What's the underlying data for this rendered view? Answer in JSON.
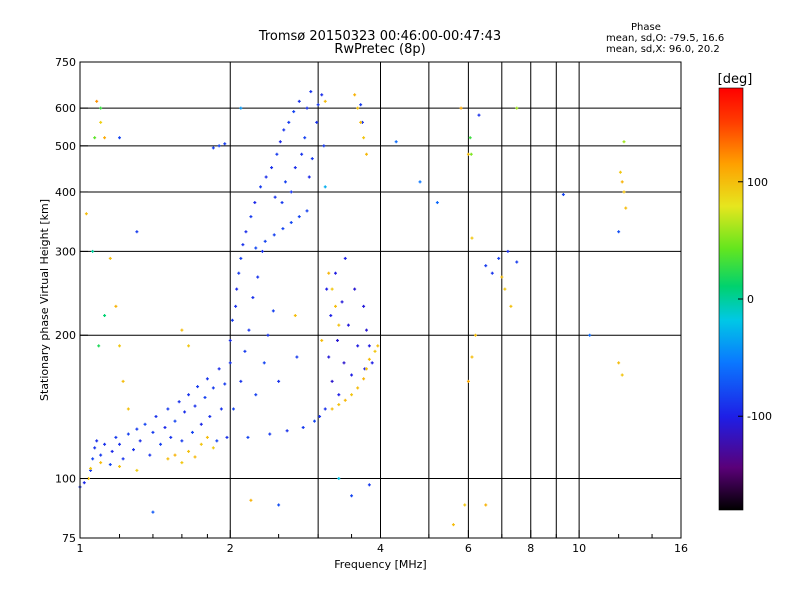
{
  "header": {
    "title_line1": "Tromsø 20150323 00:46:00-00:47:43",
    "title_line2": "RwPretec (8p)"
  },
  "phase_box": {
    "label": "Phase",
    "line_o": "mean, sd,O: -79.5, 16.6",
    "line_x": "mean, sd,X:  96.0, 20.2"
  },
  "colorbar": {
    "unit_label": "[deg]",
    "range": [
      -180,
      180
    ],
    "ticks": [
      {
        "value": 100,
        "label": "100"
      },
      {
        "value": 0,
        "label": "0"
      },
      {
        "value": -100,
        "label": "-100"
      }
    ]
  },
  "chart_data": {
    "type": "scatter",
    "title": "Tromsø 20150323 00:46:00-00:47:43",
    "subtitle": "RwPretec (8p)",
    "xlabel": "Frequency [MHz]",
    "ylabel": "Stationary phase Virtual Height [km]",
    "x_scale": "log",
    "y_scale": "log",
    "xlim": [
      1,
      16
    ],
    "ylim": [
      75,
      750
    ],
    "x_ticks": [
      {
        "value": 1,
        "label": "1"
      },
      {
        "value": 2,
        "label": "2"
      },
      {
        "value": 4,
        "label": "4"
      },
      {
        "value": 6,
        "label": "6"
      },
      {
        "value": 8,
        "label": "8"
      },
      {
        "value": 10,
        "label": "10"
      },
      {
        "value": 16,
        "label": "16"
      }
    ],
    "y_ticks": [
      {
        "value": 75,
        "label": "75"
      },
      {
        "value": 100,
        "label": "100"
      },
      {
        "value": 200,
        "label": "200"
      },
      {
        "value": 300,
        "label": "300"
      },
      {
        "value": 400,
        "label": "400"
      },
      {
        "value": 500,
        "label": "500"
      },
      {
        "value": 600,
        "label": "600"
      },
      {
        "value": 750,
        "label": "750"
      }
    ],
    "x_grid": [
      2,
      3,
      4,
      5,
      6,
      7,
      8,
      9,
      10
    ],
    "y_grid": [
      100,
      200,
      300,
      400,
      500,
      600
    ],
    "grid": true,
    "color_scale": "phase [deg], -180 to 180",
    "series": [
      {
        "mode": "O",
        "points": [
          [
            1.0,
            96,
            -90
          ],
          [
            1.02,
            98,
            -95
          ],
          [
            1.05,
            104,
            -85
          ],
          [
            1.06,
            110,
            -80
          ],
          [
            1.07,
            116,
            -88
          ],
          [
            1.08,
            120,
            -92
          ],
          [
            1.1,
            112,
            -85
          ],
          [
            1.12,
            118,
            -90
          ],
          [
            1.15,
            107,
            -80
          ],
          [
            1.16,
            114,
            -95
          ],
          [
            1.18,
            122,
            -85
          ],
          [
            1.2,
            118,
            -90
          ],
          [
            1.22,
            110,
            -88
          ],
          [
            1.25,
            124,
            -82
          ],
          [
            1.28,
            115,
            -90
          ],
          [
            1.3,
            127,
            -85
          ],
          [
            1.32,
            120,
            -92
          ],
          [
            1.35,
            130,
            -80
          ],
          [
            1.38,
            112,
            -88
          ],
          [
            1.4,
            125,
            -85
          ],
          [
            1.42,
            135,
            -90
          ],
          [
            1.45,
            118,
            -82
          ],
          [
            1.48,
            128,
            -95
          ],
          [
            1.5,
            140,
            -85
          ],
          [
            1.52,
            122,
            -88
          ],
          [
            1.55,
            132,
            -80
          ],
          [
            1.58,
            145,
            -90
          ],
          [
            1.6,
            120,
            -85
          ],
          [
            1.62,
            138,
            -92
          ],
          [
            1.65,
            150,
            -88
          ],
          [
            1.68,
            125,
            -80
          ],
          [
            1.7,
            142,
            -90
          ],
          [
            1.72,
            156,
            -85
          ],
          [
            1.75,
            130,
            -95
          ],
          [
            1.78,
            148,
            -82
          ],
          [
            1.8,
            162,
            -88
          ],
          [
            1.82,
            135,
            -90
          ],
          [
            1.85,
            155,
            -85
          ],
          [
            1.88,
            120,
            -80
          ],
          [
            1.9,
            170,
            -92
          ],
          [
            1.92,
            140,
            -88
          ],
          [
            1.95,
            158,
            -85
          ],
          [
            1.97,
            122,
            -90
          ],
          [
            2.0,
            175,
            -88
          ],
          [
            2.0,
            195,
            -92
          ],
          [
            2.02,
            215,
            -85
          ],
          [
            2.03,
            140,
            -80
          ],
          [
            2.05,
            230,
            -90
          ],
          [
            2.06,
            250,
            -95
          ],
          [
            2.08,
            270,
            -85
          ],
          [
            2.1,
            160,
            -88
          ],
          [
            2.1,
            290,
            -82
          ],
          [
            2.12,
            310,
            -90
          ],
          [
            2.14,
            185,
            -85
          ],
          [
            2.15,
            330,
            -92
          ],
          [
            2.17,
            122,
            -80
          ],
          [
            2.18,
            205,
            -88
          ],
          [
            2.2,
            355,
            -85
          ],
          [
            2.22,
            240,
            -90
          ],
          [
            2.24,
            380,
            -95
          ],
          [
            2.25,
            150,
            -82
          ],
          [
            2.27,
            265,
            -88
          ],
          [
            2.3,
            410,
            -85
          ],
          [
            2.32,
            300,
            -90
          ],
          [
            2.34,
            175,
            -80
          ],
          [
            2.36,
            430,
            -92
          ],
          [
            2.38,
            200,
            -88
          ],
          [
            2.4,
            124,
            -85
          ],
          [
            2.42,
            450,
            -90
          ],
          [
            2.44,
            225,
            -82
          ],
          [
            2.46,
            390,
            -88
          ],
          [
            2.48,
            480,
            -85
          ],
          [
            2.5,
            160,
            -90
          ],
          [
            2.52,
            510,
            -95
          ],
          [
            2.54,
            380,
            -85
          ],
          [
            2.56,
            540,
            -88
          ],
          [
            2.58,
            420,
            -82
          ],
          [
            2.6,
            126,
            -90
          ],
          [
            2.62,
            560,
            -85
          ],
          [
            2.65,
            400,
            -88
          ],
          [
            2.68,
            590,
            -80
          ],
          [
            2.7,
            450,
            -92
          ],
          [
            2.72,
            180,
            -85
          ],
          [
            2.75,
            620,
            -90
          ],
          [
            2.78,
            480,
            -88
          ],
          [
            2.8,
            128,
            -85
          ],
          [
            2.82,
            520,
            -82
          ],
          [
            2.85,
            600,
            -90
          ],
          [
            2.88,
            430,
            -95
          ],
          [
            2.9,
            650,
            -88
          ],
          [
            2.92,
            470,
            -85
          ],
          [
            2.95,
            132,
            -80
          ],
          [
            2.98,
            560,
            -90
          ],
          [
            3.0,
            610,
            -85
          ],
          [
            3.02,
            135,
            -88
          ],
          [
            3.05,
            640,
            -92
          ],
          [
            3.08,
            500,
            -85
          ],
          [
            3.1,
            140,
            -90
          ],
          [
            3.12,
            250,
            -100
          ],
          [
            3.15,
            180,
            -105
          ],
          [
            3.18,
            220,
            -98
          ],
          [
            3.2,
            160,
            -110
          ],
          [
            3.25,
            270,
            -102
          ],
          [
            3.28,
            195,
            -108
          ],
          [
            3.3,
            150,
            -100
          ],
          [
            3.35,
            235,
            -105
          ],
          [
            3.38,
            175,
            -110
          ],
          [
            3.4,
            290,
            -98
          ],
          [
            3.45,
            210,
            -104
          ],
          [
            3.5,
            165,
            -100
          ],
          [
            3.55,
            250,
            -108
          ],
          [
            3.6,
            190,
            -102
          ],
          [
            3.65,
            610,
            -85
          ],
          [
            3.68,
            560,
            -88
          ],
          [
            3.7,
            230,
            -105
          ],
          [
            3.72,
            170,
            -100
          ],
          [
            3.75,
            205,
            -108
          ],
          [
            3.8,
            190,
            -102
          ],
          [
            3.85,
            175,
            -100
          ],
          [
            1.9,
            500,
            -80
          ],
          [
            1.85,
            495,
            -82
          ],
          [
            1.95,
            505,
            -85
          ],
          [
            2.25,
            305,
            -78
          ],
          [
            2.35,
            315,
            -80
          ],
          [
            2.45,
            325,
            -82
          ],
          [
            2.55,
            335,
            -80
          ],
          [
            2.65,
            345,
            -78
          ],
          [
            2.75,
            355,
            -80
          ],
          [
            2.85,
            365,
            -82
          ],
          [
            4.3,
            510,
            -60
          ],
          [
            4.8,
            420,
            -55
          ],
          [
            5.2,
            380,
            -62
          ],
          [
            6.3,
            580,
            -90
          ],
          [
            6.5,
            280,
            -85
          ],
          [
            6.7,
            270,
            -88
          ],
          [
            6.9,
            290,
            -82
          ],
          [
            7.2,
            300,
            -90
          ],
          [
            7.5,
            285,
            -85
          ],
          [
            9.3,
            395,
            -80
          ],
          [
            10.5,
            200,
            -60
          ],
          [
            12.0,
            330,
            -75
          ],
          [
            1.4,
            85,
            -70
          ],
          [
            1.3,
            330,
            -85
          ],
          [
            1.2,
            520,
            -80
          ],
          [
            2.5,
            88,
            -75
          ],
          [
            3.5,
            92,
            -80
          ],
          [
            3.8,
            97,
            -85
          ]
        ]
      },
      {
        "mode": "X",
        "points": [
          [
            1.05,
            105,
            95
          ],
          [
            1.1,
            108,
            100
          ],
          [
            1.2,
            106,
            98
          ],
          [
            1.3,
            104,
            92
          ],
          [
            1.5,
            110,
            100
          ],
          [
            1.55,
            112,
            105
          ],
          [
            1.6,
            108,
            95
          ],
          [
            1.65,
            114,
            98
          ],
          [
            1.7,
            111,
            102
          ],
          [
            1.75,
            118,
            96
          ],
          [
            1.8,
            122,
            100
          ],
          [
            1.85,
            116,
            94
          ],
          [
            3.2,
            140,
            100
          ],
          [
            3.3,
            143,
            98
          ],
          [
            3.4,
            146,
            102
          ],
          [
            3.5,
            150,
            96
          ],
          [
            3.6,
            155,
            100
          ],
          [
            3.7,
            162,
            104
          ],
          [
            3.75,
            170,
            98
          ],
          [
            3.8,
            178,
            100
          ],
          [
            3.9,
            185,
            95
          ],
          [
            3.95,
            190,
            100
          ],
          [
            3.1,
            620,
            100
          ],
          [
            3.55,
            640,
            105
          ],
          [
            3.6,
            600,
            98
          ],
          [
            3.65,
            560,
            100
          ],
          [
            3.7,
            520,
            96
          ],
          [
            3.75,
            480,
            102
          ],
          [
            3.2,
            250,
            95
          ],
          [
            3.25,
            230,
            100
          ],
          [
            3.3,
            210,
            98
          ],
          [
            3.15,
            270,
            104
          ],
          [
            3.05,
            195,
            100
          ],
          [
            1.08,
            620,
            120
          ],
          [
            1.1,
            560,
            90
          ],
          [
            1.12,
            520,
            110
          ],
          [
            1.15,
            290,
            100
          ],
          [
            1.18,
            230,
            105
          ],
          [
            1.2,
            190,
            95
          ],
          [
            1.22,
            160,
            100
          ],
          [
            1.25,
            140,
            98
          ],
          [
            5.6,
            80,
            100
          ],
          [
            5.9,
            88,
            95
          ],
          [
            6.0,
            160,
            110
          ],
          [
            6.1,
            180,
            100
          ],
          [
            6.5,
            88,
            105
          ],
          [
            7.0,
            265,
            100
          ],
          [
            7.1,
            250,
            95
          ],
          [
            7.3,
            230,
            98
          ],
          [
            12.4,
            370,
            100
          ],
          [
            12.1,
            440,
            95
          ],
          [
            12.2,
            420,
            105
          ],
          [
            12.3,
            400,
            98
          ],
          [
            12.0,
            175,
            100
          ],
          [
            12.2,
            165,
            96
          ],
          [
            1.6,
            205,
            100
          ],
          [
            1.65,
            190,
            95
          ],
          [
            2.2,
            90,
            105
          ],
          [
            2.7,
            220,
            100
          ],
          [
            5.8,
            600,
            110
          ],
          [
            6.0,
            480,
            100
          ],
          [
            6.1,
            320,
            95
          ],
          [
            6.2,
            200,
            100
          ],
          [
            1.04,
            100,
            98
          ],
          [
            1.03,
            360,
            100
          ],
          [
            1.06,
            300,
            0
          ],
          [
            1.09,
            190,
            20
          ],
          [
            1.12,
            220,
            10
          ],
          [
            6.05,
            520,
            30
          ],
          [
            6.08,
            480,
            50
          ],
          [
            12.3,
            510,
            60
          ],
          [
            7.5,
            600,
            60
          ],
          [
            3.1,
            410,
            -30
          ],
          [
            3.3,
            100,
            -20
          ],
          [
            1.07,
            520,
            40
          ],
          [
            1.1,
            600,
            30
          ],
          [
            2.1,
            600,
            -40
          ]
        ]
      }
    ]
  }
}
